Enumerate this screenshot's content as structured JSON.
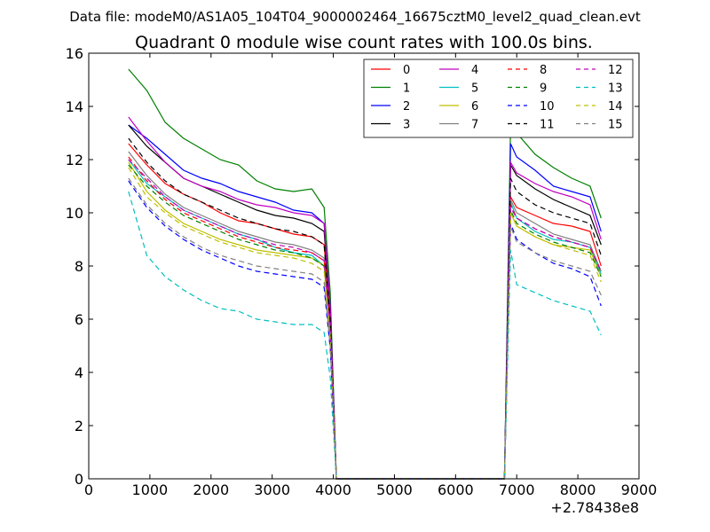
{
  "chart_data": {
    "type": "line",
    "suptitle": "Data file: modeM0/AS1A05_104T04_9000002464_16675cztM0_level2_quad_clean.evt",
    "title": "Quadrant 0 module wise count rates with 100.0s bins.",
    "xlabel": "",
    "ylabel": "",
    "x_offset_label": "+2.78438e8",
    "xlim": [
      0,
      9000
    ],
    "ylim": [
      0,
      16
    ],
    "x_ticks": [
      0,
      1000,
      2000,
      3000,
      4000,
      5000,
      6000,
      7000,
      8000,
      9000
    ],
    "y_ticks": [
      0,
      2,
      4,
      6,
      8,
      10,
      12,
      14,
      16
    ],
    "legend_position": "top-right",
    "x": [
      650,
      950,
      1250,
      1550,
      1850,
      2150,
      2450,
      2750,
      3050,
      3350,
      3650,
      3850,
      3950,
      4050,
      6800,
      6900,
      7000,
      7300,
      7600,
      7900,
      8200,
      8380
    ],
    "series": [
      {
        "name": "0",
        "color": "#ff0000",
        "dash": "solid",
        "values": [
          12.6,
          11.8,
          11.1,
          10.7,
          10.4,
          10.0,
          9.7,
          9.6,
          9.4,
          9.2,
          9.1,
          8.8,
          6.0,
          0.0,
          0.0,
          10.6,
          10.2,
          9.9,
          9.6,
          9.5,
          9.3,
          8.0
        ]
      },
      {
        "name": "1",
        "color": "#008000",
        "dash": "solid",
        "values": [
          15.4,
          14.6,
          13.4,
          12.8,
          12.4,
          12.0,
          11.8,
          11.2,
          10.9,
          10.8,
          10.9,
          10.2,
          7.0,
          0.0,
          0.0,
          13.3,
          13.0,
          12.2,
          11.7,
          11.3,
          11.0,
          9.8
        ]
      },
      {
        "name": "2",
        "color": "#0000ff",
        "dash": "solid",
        "values": [
          13.3,
          12.8,
          12.2,
          11.6,
          11.3,
          11.1,
          10.8,
          10.6,
          10.4,
          10.1,
          10.0,
          9.6,
          6.5,
          0.0,
          0.0,
          12.6,
          12.1,
          11.6,
          11.0,
          10.8,
          10.6,
          9.3
        ]
      },
      {
        "name": "3",
        "color": "#000000",
        "dash": "solid",
        "values": [
          13.3,
          12.5,
          11.9,
          11.3,
          11.0,
          10.7,
          10.4,
          10.1,
          9.9,
          9.8,
          9.6,
          9.3,
          6.3,
          0.0,
          0.0,
          11.8,
          11.4,
          10.9,
          10.5,
          10.2,
          9.9,
          8.8
        ]
      },
      {
        "name": "4",
        "color": "#bf00bf",
        "dash": "solid",
        "values": [
          13.6,
          12.7,
          11.9,
          11.3,
          11.0,
          10.8,
          10.5,
          10.3,
          10.2,
          10.0,
          9.9,
          9.6,
          6.4,
          0.0,
          0.0,
          11.9,
          11.5,
          11.1,
          10.8,
          10.6,
          10.3,
          9.0
        ]
      },
      {
        "name": "5",
        "color": "#00bfbf",
        "dash": "solid",
        "values": [
          12.0,
          11.1,
          10.6,
          10.1,
          9.8,
          9.5,
          9.2,
          9.0,
          8.7,
          8.5,
          8.4,
          8.0,
          5.5,
          0.0,
          0.0,
          10.4,
          9.8,
          9.3,
          9.0,
          8.9,
          8.7,
          7.7
        ]
      },
      {
        "name": "6",
        "color": "#bfbf00",
        "dash": "solid",
        "values": [
          11.9,
          10.8,
          10.1,
          9.6,
          9.3,
          9.0,
          8.8,
          8.6,
          8.5,
          8.4,
          8.3,
          8.0,
          5.4,
          0.0,
          0.0,
          10.0,
          9.5,
          9.1,
          8.8,
          8.7,
          8.6,
          7.6
        ]
      },
      {
        "name": "7",
        "color": "#808080",
        "dash": "solid",
        "values": [
          12.3,
          11.4,
          10.7,
          10.2,
          9.9,
          9.6,
          9.3,
          9.1,
          8.9,
          8.8,
          8.6,
          8.3,
          5.6,
          0.0,
          0.0,
          10.5,
          10.0,
          9.6,
          9.2,
          9.0,
          8.8,
          7.8
        ]
      },
      {
        "name": "8",
        "color": "#ff0000",
        "dash": "dashed",
        "values": [
          12.1,
          11.2,
          10.5,
          10.0,
          9.7,
          9.4,
          9.1,
          8.9,
          8.7,
          8.6,
          8.5,
          8.2,
          5.5,
          0.0,
          0.0,
          10.3,
          9.8,
          9.4,
          9.1,
          8.9,
          8.7,
          7.8
        ]
      },
      {
        "name": "9",
        "color": "#008000",
        "dash": "dashed",
        "values": [
          11.8,
          11.0,
          10.4,
          9.9,
          9.6,
          9.3,
          9.0,
          8.8,
          8.6,
          8.5,
          8.3,
          8.0,
          5.4,
          0.0,
          0.0,
          10.1,
          9.6,
          9.2,
          8.9,
          8.7,
          8.5,
          7.6
        ]
      },
      {
        "name": "10",
        "color": "#0000ff",
        "dash": "dashed",
        "values": [
          11.2,
          10.2,
          9.5,
          9.0,
          8.6,
          8.3,
          8.0,
          7.8,
          7.7,
          7.6,
          7.5,
          7.2,
          4.9,
          0.0,
          0.0,
          9.6,
          9.0,
          8.5,
          8.1,
          7.9,
          7.6,
          6.5
        ]
      },
      {
        "name": "11",
        "color": "#000000",
        "dash": "dashed",
        "values": [
          12.8,
          11.9,
          11.2,
          10.7,
          10.4,
          10.1,
          9.8,
          9.6,
          9.4,
          9.3,
          9.1,
          8.8,
          6.0,
          0.0,
          0.0,
          11.3,
          10.8,
          10.3,
          10.0,
          9.8,
          9.6,
          8.4
        ]
      },
      {
        "name": "12",
        "color": "#bf00bf",
        "dash": "dashed",
        "values": [
          12.0,
          11.3,
          10.6,
          10.1,
          9.8,
          9.5,
          9.2,
          9.0,
          8.8,
          8.7,
          8.5,
          8.2,
          5.5,
          0.0,
          0.0,
          10.2,
          9.8,
          9.4,
          9.1,
          8.9,
          8.7,
          7.8
        ]
      },
      {
        "name": "13",
        "color": "#00bfbf",
        "dash": "dashed",
        "values": [
          10.8,
          8.4,
          7.6,
          7.1,
          6.7,
          6.4,
          6.3,
          6.0,
          5.9,
          5.8,
          5.8,
          5.5,
          3.8,
          0.0,
          0.0,
          8.6,
          7.3,
          7.0,
          6.7,
          6.5,
          6.3,
          5.4
        ]
      },
      {
        "name": "14",
        "color": "#bfbf00",
        "dash": "dashed",
        "values": [
          11.7,
          10.6,
          10.0,
          9.5,
          9.2,
          8.9,
          8.7,
          8.5,
          8.4,
          8.3,
          8.1,
          7.8,
          5.3,
          0.0,
          0.0,
          10.0,
          9.5,
          9.1,
          8.8,
          8.6,
          8.4,
          7.4
        ]
      },
      {
        "name": "15",
        "color": "#808080",
        "dash": "dashed",
        "values": [
          11.3,
          10.3,
          9.6,
          9.1,
          8.7,
          8.4,
          8.2,
          8.0,
          7.9,
          7.8,
          7.7,
          7.4,
          5.0,
          0.0,
          0.0,
          9.5,
          8.9,
          8.5,
          8.2,
          8.0,
          7.8,
          6.9
        ]
      }
    ]
  }
}
